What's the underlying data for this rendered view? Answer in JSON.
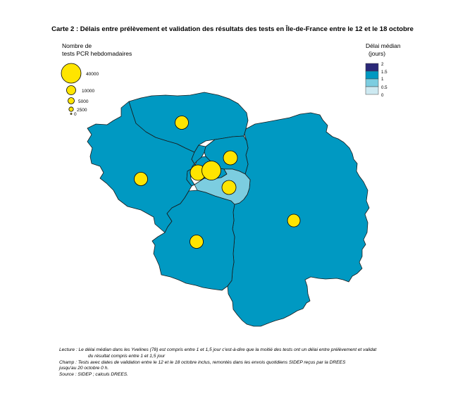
{
  "title": "Carte 2 : Délais entre prélèvement et validation des résultats des tests en Île-de-France entre le 12 et le 18 octobre",
  "size_legend": {
    "title_line1": "Nombre de",
    "title_line2": "tests PCR hebdomadaires",
    "items": [
      {
        "label": "40000",
        "value": 40000
      },
      {
        "label": "10000",
        "value": 10000
      },
      {
        "label": "5000",
        "value": 5000
      },
      {
        "label": "2500",
        "value": 2500
      },
      {
        "label": "0",
        "value": 0
      }
    ]
  },
  "delay_legend": {
    "title_line1": "Délai médian",
    "title_line2": "(jours)",
    "tick_labels": [
      "2",
      "1.5",
      "1",
      "0.5",
      "0"
    ],
    "classes": [
      {
        "range": "1.5-2",
        "color": "#2b2878"
      },
      {
        "range": "1-1.5",
        "color": "#0099c2"
      },
      {
        "range": "0.5-1",
        "color": "#7ccde0"
      },
      {
        "range": "0-0.5",
        "color": "#cde9f1"
      }
    ]
  },
  "colors": {
    "department_fill": "#0099c2",
    "val_de_marne_fill": "#7ccde0",
    "border": "#1a1a1a",
    "bubble_fill": "#ffe500",
    "bubble_stroke": "#000000"
  },
  "notes": {
    "lecture_1": "Lecture : Le délai médian dans les Yvelines (78) est compris entre 1 et 1,5 jour c'est-à-dire que la moitié des tests ont un délai entre prélèvement et validat",
    "lecture_2": "du résultat compris entre 1 et 1,5 jour",
    "champ_1": "Champ : Tests avec dates de validation entre le 12 et le 18 octobre inclus, remontés dans les envois quotidiens SIDEP reçus par la DREES",
    "champ_2": "jusqu'au 20 octobre 0 h.",
    "source": "Source : SIDEP ; calculs DREES."
  }
}
